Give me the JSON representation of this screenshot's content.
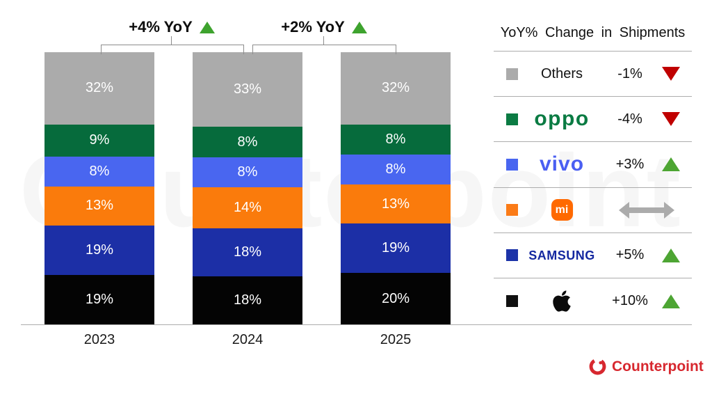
{
  "watermark": "Counterpoint",
  "chart_data": {
    "type": "bar",
    "stacked": true,
    "title": "",
    "categories": [
      "2023",
      "2024",
      "2025"
    ],
    "value_suffix": "%",
    "series_order_top_to_bottom": [
      "Others",
      "OPPO",
      "vivo",
      "Xiaomi",
      "Samsung",
      "Apple"
    ],
    "series": [
      {
        "name": "Others",
        "color": "#ABABAB",
        "values": [
          32,
          33,
          32
        ]
      },
      {
        "name": "OPPO",
        "color": "#066B3C",
        "values": [
          9,
          8,
          8
        ]
      },
      {
        "name": "vivo",
        "color": "#4966F0",
        "values": [
          8,
          8,
          8
        ]
      },
      {
        "name": "Xiaomi",
        "color": "#FA7B0C",
        "values": [
          13,
          14,
          13
        ]
      },
      {
        "name": "Samsung",
        "color": "#1C2FA6",
        "values": [
          19,
          18,
          19
        ]
      },
      {
        "name": "Apple",
        "color": "#040404",
        "values": [
          19,
          18,
          20
        ]
      }
    ],
    "yoy_annotations": [
      {
        "between": [
          "2023",
          "2024"
        ],
        "label": "+4% YoY",
        "direction": "up"
      },
      {
        "between": [
          "2024",
          "2025"
        ],
        "label": "+2% YoY",
        "direction": "up"
      }
    ]
  },
  "annotations": [
    {
      "label": "+4% YoY",
      "direction": "up"
    },
    {
      "label": "+2% YoY",
      "direction": "up"
    }
  ],
  "legend": {
    "title": "YoY% Change in Shipments",
    "rows": [
      {
        "brand": "Others",
        "logo_text": "Others",
        "change": "-1%",
        "direction": "down"
      },
      {
        "brand": "OPPO",
        "logo_text": "oppo",
        "change": "-4%",
        "direction": "down"
      },
      {
        "brand": "vivo",
        "logo_text": "vivo",
        "change": "+3%",
        "direction": "up"
      },
      {
        "brand": "Xiaomi",
        "logo_text": "mi",
        "change": "",
        "direction": "flat"
      },
      {
        "brand": "Samsung",
        "logo_text": "SAMSUNG",
        "change": "+5%",
        "direction": "up"
      },
      {
        "brand": "Apple",
        "logo_text": "",
        "change": "+10%",
        "direction": "up"
      }
    ]
  },
  "footer": {
    "brand": "Counterpoint"
  },
  "colors": {
    "up_green": "#4DA533",
    "down_red": "#C00000",
    "flat_gray": "#ABABAB",
    "rule_gray": "#ACACAC",
    "bracket_gray": "#8C8C8C",
    "counterpoint_red": "#D7282F",
    "annotation_triangle_green": "#3EA32E"
  }
}
